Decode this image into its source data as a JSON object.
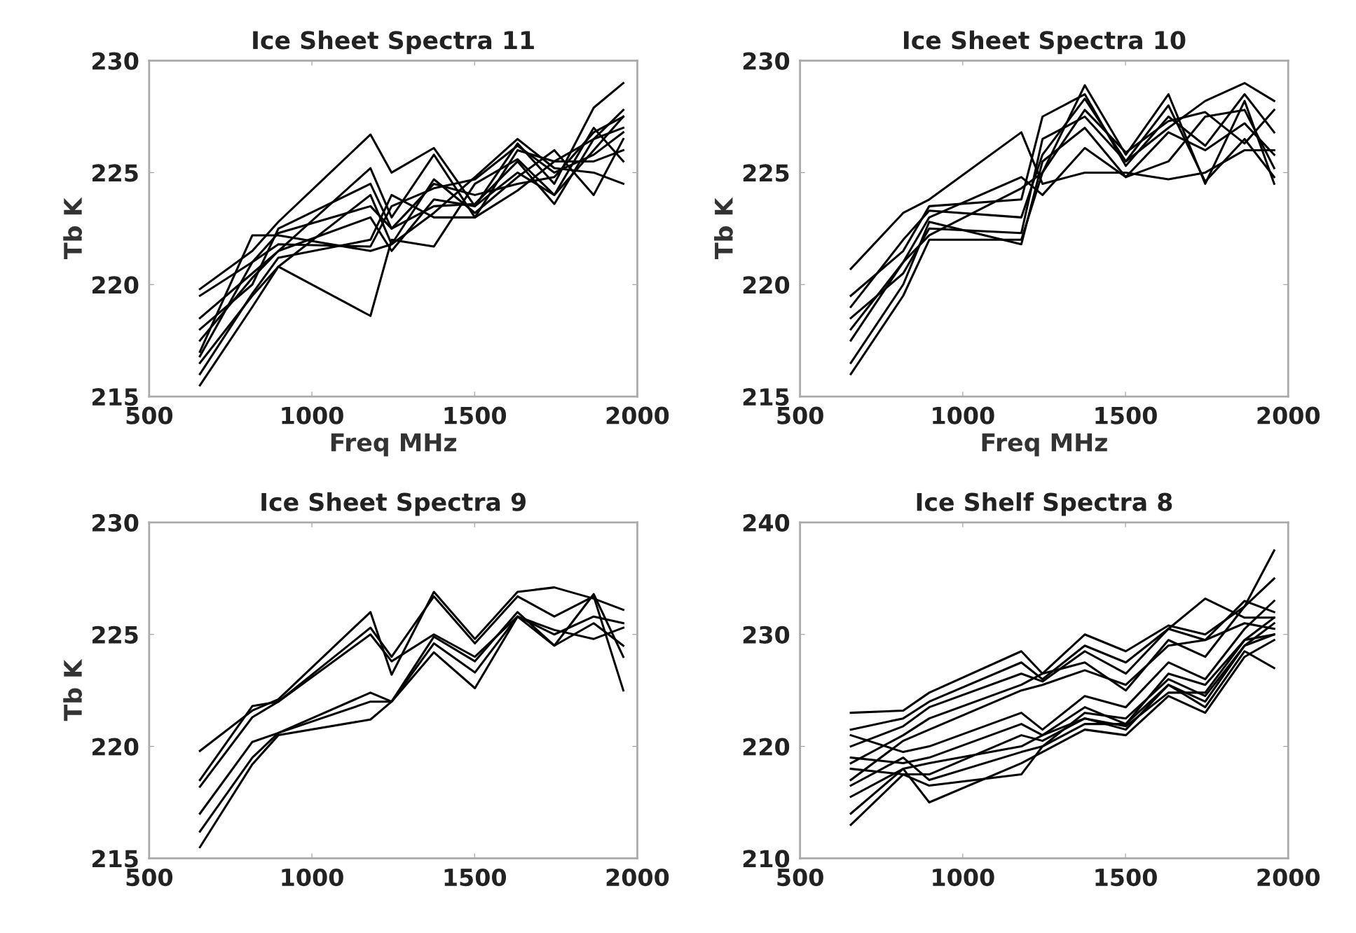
{
  "chart_data": [
    {
      "type": "line",
      "title": "Ice Sheet Spectra 11",
      "xlabel": "Freq MHz",
      "ylabel": "Tb K",
      "x": [
        656,
        817,
        897,
        1180,
        1245,
        1375,
        1501,
        1632,
        1745,
        1866,
        1957
      ],
      "xlim": [
        500,
        2000
      ],
      "xticks": [
        500,
        1000,
        1500,
        2000
      ],
      "ylim": [
        215,
        230
      ],
      "yticks": [
        215,
        220,
        225,
        230
      ],
      "grid": false,
      "marker": "none",
      "line_style": "solid",
      "series": [
        {
          "color": "#000000",
          "values": [
            219.8,
            221.5,
            222.8,
            226.7,
            225.0,
            226.1,
            223.5,
            226.3,
            224.5,
            227.9,
            229.0
          ]
        },
        {
          "color": "#000000",
          "values": [
            216.5,
            219.5,
            220.8,
            218.6,
            222.0,
            221.7,
            224.5,
            225.6,
            224.0,
            226.0,
            227.5
          ]
        },
        {
          "color": "#000000",
          "values": [
            217.0,
            222.2,
            222.2,
            221.5,
            221.8,
            223.2,
            224.8,
            226.5,
            225.2,
            225.0,
            224.5
          ]
        },
        {
          "color": "#000000",
          "values": [
            218.5,
            220.5,
            221.5,
            225.2,
            223.0,
            225.8,
            223.0,
            226.0,
            225.5,
            226.5,
            227.0
          ]
        },
        {
          "color": "#000000",
          "values": [
            215.5,
            219.0,
            220.8,
            224.0,
            221.8,
            224.7,
            223.2,
            224.8,
            226.0,
            224.0,
            226.5
          ]
        },
        {
          "color": "#000000",
          "values": [
            219.5,
            221.0,
            222.3,
            223.5,
            222.5,
            224.5,
            224.0,
            224.5,
            224.8,
            226.8,
            227.5
          ]
        },
        {
          "color": "#000000",
          "values": [
            217.5,
            220.3,
            221.5,
            223.0,
            221.5,
            223.8,
            223.5,
            225.0,
            224.0,
            227.0,
            225.5
          ]
        },
        {
          "color": "#000000",
          "values": [
            216.0,
            219.6,
            221.2,
            222.0,
            224.0,
            223.0,
            223.0,
            224.2,
            225.5,
            225.5,
            226.0
          ]
        },
        {
          "color": "#000000",
          "values": [
            218.0,
            220.0,
            222.5,
            224.5,
            222.5,
            223.5,
            223.6,
            225.5,
            223.6,
            226.5,
            227.8
          ]
        },
        {
          "color": "#000000",
          "values": [
            216.8,
            221.0,
            221.8,
            221.7,
            223.5,
            224.3,
            224.7,
            226.2,
            225.0,
            225.8,
            226.8
          ]
        }
      ]
    },
    {
      "type": "line",
      "title": "Ice Sheet Spectra 10",
      "xlabel": "Freq MHz",
      "ylabel": "Tb K",
      "x": [
        656,
        817,
        897,
        1180,
        1245,
        1375,
        1501,
        1632,
        1745,
        1866,
        1957
      ],
      "xlim": [
        500,
        2000
      ],
      "xticks": [
        500,
        1000,
        1500,
        2000
      ],
      "ylim": [
        215,
        230
      ],
      "yticks": [
        215,
        220,
        225,
        230
      ],
      "grid": false,
      "marker": "none",
      "line_style": "solid",
      "series": [
        {
          "color": "#000000",
          "values": [
            220.7,
            223.2,
            223.8,
            226.8,
            224.5,
            225.0,
            225.0,
            224.7,
            225.0,
            226.0,
            226.0
          ]
        },
        {
          "color": "#000000",
          "values": [
            216.0,
            219.5,
            222.0,
            222.0,
            225.0,
            228.9,
            225.8,
            228.5,
            224.5,
            228.2,
            224.5
          ]
        },
        {
          "color": "#000000",
          "values": [
            219.5,
            221.5,
            223.5,
            223.8,
            227.5,
            228.5,
            225.3,
            227.5,
            226.2,
            228.5,
            226.8
          ]
        },
        {
          "color": "#000000",
          "values": [
            218.5,
            220.5,
            222.5,
            222.3,
            226.5,
            227.5,
            225.5,
            227.0,
            228.2,
            229.0,
            228.2
          ]
        },
        {
          "color": "#000000",
          "values": [
            217.5,
            221.0,
            223.0,
            224.8,
            224.0,
            226.1,
            224.8,
            225.5,
            227.5,
            227.8,
            225.2
          ]
        },
        {
          "color": "#000000",
          "values": [
            216.5,
            220.0,
            222.8,
            221.8,
            225.5,
            227.0,
            224.8,
            226.8,
            226.0,
            227.2,
            225.8
          ]
        },
        {
          "color": "#000000",
          "values": [
            219.0,
            222.0,
            223.3,
            223.0,
            225.8,
            228.3,
            225.5,
            228.0,
            224.6,
            226.5,
            224.8
          ]
        },
        {
          "color": "#000000",
          "values": [
            218.0,
            221.0,
            222.2,
            224.3,
            225.0,
            227.8,
            225.9,
            227.3,
            227.7,
            226.3,
            227.8
          ]
        }
      ]
    },
    {
      "type": "line",
      "title": "Ice Sheet Spectra 9",
      "ylabel": "Tb K",
      "x": [
        656,
        817,
        897,
        1180,
        1245,
        1375,
        1501,
        1632,
        1745,
        1866,
        1957
      ],
      "xlim": [
        500,
        2000
      ],
      "xticks": [
        500,
        1000,
        1500,
        2000
      ],
      "ylim": [
        215,
        230
      ],
      "yticks": [
        215,
        220,
        225,
        230
      ],
      "grid": false,
      "marker": "none",
      "line_style": "solid",
      "series": [
        {
          "color": "#000000",
          "values": [
            219.8,
            221.6,
            222.1,
            226.0,
            223.2,
            226.9,
            224.8,
            226.9,
            227.1,
            226.6,
            226.1
          ]
        },
        {
          "color": "#000000",
          "values": [
            218.5,
            221.8,
            222.0,
            225.3,
            224.0,
            226.7,
            224.6,
            226.7,
            225.8,
            226.7,
            222.5
          ]
        },
        {
          "color": "#000000",
          "values": [
            218.2,
            221.3,
            222.0,
            225.0,
            223.8,
            225.0,
            224.0,
            225.8,
            225.0,
            225.8,
            225.5
          ]
        },
        {
          "color": "#000000",
          "values": [
            217.0,
            220.2,
            220.6,
            222.4,
            222.0,
            224.9,
            223.8,
            226.0,
            224.5,
            225.5,
            224.5
          ]
        },
        {
          "color": "#000000",
          "values": [
            216.2,
            219.5,
            220.6,
            222.0,
            222.0,
            224.6,
            223.3,
            225.8,
            225.2,
            224.8,
            225.3
          ]
        },
        {
          "color": "#000000",
          "values": [
            215.5,
            219.2,
            220.5,
            221.2,
            222.0,
            224.2,
            222.6,
            225.8,
            224.5,
            226.8,
            224.0
          ]
        }
      ]
    },
    {
      "type": "line",
      "title": "Ice Shelf Spectra 8",
      "x": [
        656,
        817,
        897,
        1180,
        1245,
        1375,
        1501,
        1632,
        1745,
        1866,
        1957
      ],
      "xlim": [
        500,
        2000
      ],
      "xticks": [
        500,
        1000,
        1500,
        2000
      ],
      "ylim": [
        210,
        240
      ],
      "yticks": [
        210,
        220,
        230,
        240
      ],
      "grid": false,
      "marker": "none",
      "line_style": "solid",
      "series": [
        {
          "color": "#000000",
          "values": [
            223.0,
            223.2,
            224.8,
            228.5,
            226.5,
            230.0,
            228.5,
            230.8,
            230.0,
            232.5,
            237.5
          ]
        },
        {
          "color": "#000000",
          "values": [
            221.5,
            222.5,
            224.0,
            227.5,
            226.0,
            229.0,
            227.5,
            230.5,
            229.5,
            233.0,
            232.0
          ]
        },
        {
          "color": "#000000",
          "values": [
            220.0,
            221.8,
            223.5,
            226.5,
            225.8,
            228.5,
            226.5,
            230.5,
            233.2,
            231.5,
            231.5
          ]
        },
        {
          "color": "#000000",
          "values": [
            218.5,
            221.0,
            222.5,
            225.5,
            226.5,
            227.5,
            225.0,
            229.5,
            228.0,
            232.5,
            235.0
          ]
        },
        {
          "color": "#000000",
          "values": [
            217.0,
            220.5,
            221.5,
            225.0,
            225.5,
            226.8,
            225.5,
            229.0,
            229.5,
            231.0,
            230.5
          ]
        },
        {
          "color": "#000000",
          "values": [
            221.0,
            219.5,
            220.0,
            223.0,
            221.5,
            224.5,
            223.5,
            227.5,
            226.0,
            230.5,
            233.0
          ]
        },
        {
          "color": "#000000",
          "values": [
            219.0,
            218.5,
            219.0,
            222.0,
            221.0,
            223.5,
            222.0,
            226.5,
            225.5,
            229.5,
            231.5
          ]
        },
        {
          "color": "#000000",
          "values": [
            218.0,
            217.5,
            217.5,
            221.0,
            220.5,
            222.5,
            221.5,
            225.5,
            224.0,
            229.0,
            230.0
          ]
        },
        {
          "color": "#000000",
          "values": [
            215.5,
            218.0,
            215.0,
            218.5,
            219.5,
            221.5,
            221.0,
            224.5,
            223.0,
            228.0,
            229.5
          ]
        },
        {
          "color": "#000000",
          "values": [
            213.0,
            217.5,
            216.5,
            217.5,
            220.0,
            222.0,
            222.0,
            225.5,
            223.5,
            228.5,
            227.0
          ]
        },
        {
          "color": "#000000",
          "values": [
            216.5,
            219.0,
            217.0,
            219.5,
            220.0,
            223.0,
            222.5,
            226.0,
            224.5,
            229.0,
            231.0
          ]
        },
        {
          "color": "#000000",
          "values": [
            214.0,
            218.0,
            218.5,
            220.0,
            221.0,
            222.5,
            221.8,
            224.8,
            224.8,
            229.5,
            230.0
          ]
        }
      ]
    }
  ]
}
